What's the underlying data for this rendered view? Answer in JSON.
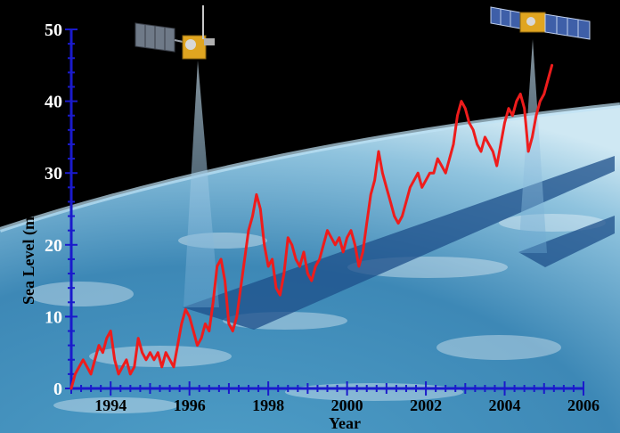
{
  "chart_data": {
    "type": "line",
    "title": "",
    "xlabel": "Year",
    "ylabel": "Sea Level (mm)",
    "xlim": [
      1993,
      2006
    ],
    "ylim": [
      0,
      50
    ],
    "x_ticks": [
      1994,
      1996,
      1998,
      2000,
      2002,
      2004,
      2006
    ],
    "y_ticks": [
      0,
      10,
      20,
      30,
      40,
      50
    ],
    "grid": false,
    "legend": "none",
    "series_color": "#ee1c1c",
    "axis_color": "#1a1acc",
    "series": [
      {
        "x": [
          1993.0,
          1993.1,
          1993.2,
          1993.3,
          1993.4,
          1993.5,
          1993.6,
          1993.7,
          1993.8,
          1993.9,
          1994.0,
          1994.1,
          1994.2,
          1994.3,
          1994.4,
          1994.5,
          1994.6,
          1994.7,
          1994.8,
          1994.9,
          1995.0,
          1995.1,
          1995.2,
          1995.3,
          1995.4,
          1995.5,
          1995.6,
          1995.7,
          1995.8,
          1995.9,
          1996.0,
          1996.1,
          1996.2,
          1996.3,
          1996.4,
          1996.5,
          1996.6,
          1996.7,
          1996.8,
          1996.9,
          1997.0,
          1997.1,
          1997.2,
          1997.3,
          1997.4,
          1997.5,
          1997.6,
          1997.7,
          1997.8,
          1997.9,
          1998.0,
          1998.1,
          1998.2,
          1998.3,
          1998.4,
          1998.5,
          1998.6,
          1998.7,
          1998.8,
          1998.9,
          1999.0,
          1999.1,
          1999.2,
          1999.3,
          1999.4,
          1999.5,
          1999.6,
          1999.7,
          1999.8,
          1999.9,
          2000.0,
          2000.1,
          2000.2,
          2000.3,
          2000.4,
          2000.5,
          2000.6,
          2000.7,
          2000.8,
          2000.9,
          2001.0,
          2001.1,
          2001.2,
          2001.3,
          2001.4,
          2001.5,
          2001.6,
          2001.7,
          2001.8,
          2001.9,
          2002.0,
          2002.1,
          2002.2,
          2002.3,
          2002.4,
          2002.5,
          2002.6,
          2002.7,
          2002.8,
          2002.9,
          2003.0,
          2003.1,
          2003.2,
          2003.3,
          2003.4,
          2003.5,
          2003.6,
          2003.7,
          2003.8,
          2003.9,
          2004.0,
          2004.1,
          2004.2,
          2004.3,
          2004.4,
          2004.5,
          2004.6,
          2004.7,
          2004.8,
          2004.9,
          2005.0,
          2005.1,
          2005.2
        ],
        "y": [
          0,
          2,
          3,
          4,
          3,
          2,
          4,
          6,
          5,
          7,
          8,
          4,
          2,
          3,
          4,
          2,
          3,
          7,
          5,
          4,
          5,
          4,
          5,
          3,
          5,
          4,
          3,
          6,
          9,
          11,
          10,
          8,
          6,
          7,
          9,
          8,
          12,
          17,
          18,
          15,
          9,
          8,
          10,
          14,
          18,
          22,
          24,
          27,
          25,
          20,
          17,
          18,
          14,
          13,
          16,
          21,
          20,
          18,
          17,
          19,
          16,
          15,
          17,
          18,
          20,
          22,
          21,
          20,
          21,
          19,
          21,
          22,
          20,
          17,
          19,
          23,
          27,
          29,
          33,
          30,
          28,
          26,
          24,
          23,
          24,
          26,
          28,
          29,
          30,
          28,
          29,
          30,
          30,
          32,
          31,
          30,
          32,
          34,
          38,
          40,
          39,
          37,
          36,
          34,
          33,
          35,
          34,
          33,
          31,
          34,
          37,
          39,
          38,
          40,
          41,
          39,
          33,
          35,
          38,
          40,
          41,
          43,
          45
        ]
      }
    ]
  }
}
